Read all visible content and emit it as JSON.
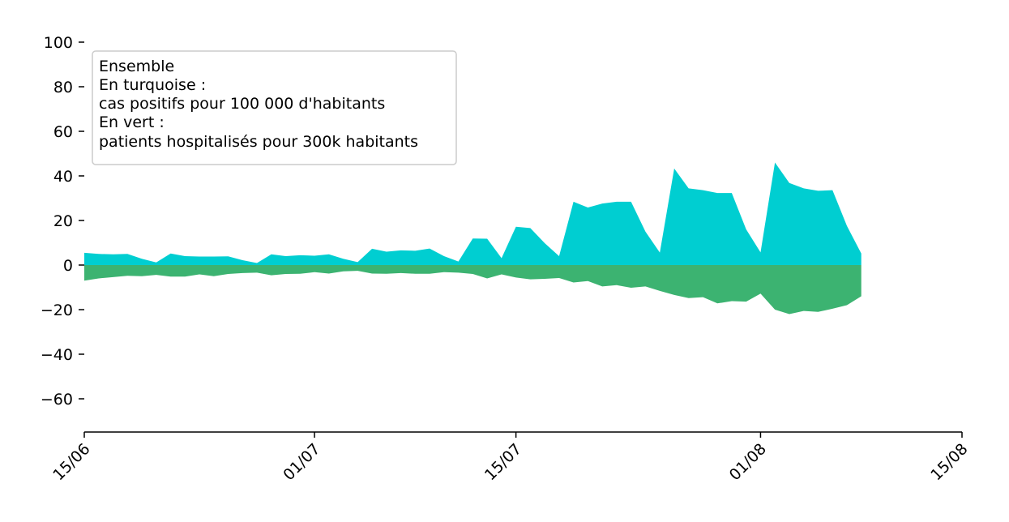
{
  "chart_data": {
    "type": "area",
    "title": "",
    "xlabel": "",
    "ylabel": "",
    "x_tick_labels": [
      "15/06",
      "01/07",
      "15/07",
      "01/08",
      "15/08"
    ],
    "x_tick_dates": [
      "2020-06-15",
      "2020-07-01",
      "2020-07-15",
      "2020-08-01",
      "2020-08-15"
    ],
    "xlim": [
      "2020-06-15",
      "2020-08-15"
    ],
    "ylim": [
      -75,
      100
    ],
    "y_ticks": [
      100,
      80,
      60,
      40,
      20,
      0,
      -20,
      -40,
      -60
    ],
    "grid": false,
    "legend": {
      "position": "top-left",
      "lines": [
        "Ensemble",
        "En turquoise :",
        "cas positifs pour 100 000 d'habitants",
        "En vert :",
        "patients hospitalisés pour 300k habitants"
      ]
    },
    "x": [
      "2020-06-15",
      "2020-06-16",
      "2020-06-17",
      "2020-06-18",
      "2020-06-19",
      "2020-06-20",
      "2020-06-21",
      "2020-06-22",
      "2020-06-23",
      "2020-06-24",
      "2020-06-25",
      "2020-06-26",
      "2020-06-27",
      "2020-06-28",
      "2020-06-29",
      "2020-06-30",
      "2020-07-01",
      "2020-07-02",
      "2020-07-03",
      "2020-07-04",
      "2020-07-05",
      "2020-07-06",
      "2020-07-07",
      "2020-07-08",
      "2020-07-09",
      "2020-07-10",
      "2020-07-11",
      "2020-07-12",
      "2020-07-13",
      "2020-07-14",
      "2020-07-15",
      "2020-07-16",
      "2020-07-17",
      "2020-07-18",
      "2020-07-19",
      "2020-07-20",
      "2020-07-21",
      "2020-07-22",
      "2020-07-23",
      "2020-07-24",
      "2020-07-25",
      "2020-07-26",
      "2020-07-27",
      "2020-07-28",
      "2020-07-29",
      "2020-07-30",
      "2020-07-31",
      "2020-08-01",
      "2020-08-02",
      "2020-08-03",
      "2020-08-04",
      "2020-08-05",
      "2020-08-06",
      "2020-08-07",
      "2020-08-08"
    ],
    "series": [
      {
        "color": "#00ced1",
        "values": [
          5.5,
          5,
          4.8,
          5,
          2.8,
          1.2,
          5.2,
          4,
          3.8,
          3.8,
          3.9,
          2.2,
          0.9,
          4.8,
          4,
          4.4,
          4.2,
          4.8,
          2.8,
          1.3,
          7.3,
          6,
          6.6,
          6.4,
          7.4,
          4,
          1.6,
          11.9,
          11.8,
          3.1,
          17.2,
          16.6,
          9.8,
          4,
          28.4,
          25.8,
          27.6,
          28.4,
          28.4,
          15,
          5.6,
          43.3,
          34.4,
          33.6,
          32.3,
          32.3,
          16,
          5.7,
          46,
          36.8,
          34.4,
          33.3,
          33.6,
          17.6,
          5.2
        ]
      },
      {
        "color": "#3cb371",
        "values": [
          -7,
          -6,
          -5.4,
          -4.8,
          -5,
          -4.4,
          -5.2,
          -5.2,
          -4.2,
          -5,
          -4,
          -3.6,
          -3.4,
          -4.6,
          -4,
          -3.9,
          -3.2,
          -3.8,
          -2.8,
          -2.6,
          -3.8,
          -3.9,
          -3.6,
          -3.9,
          -3.9,
          -3.2,
          -3.4,
          -4,
          -6,
          -4.2,
          -5.6,
          -6.4,
          -6.2,
          -5.8,
          -7.8,
          -7.2,
          -9.6,
          -9,
          -10.2,
          -9.6,
          -11.6,
          -13.4,
          -14.8,
          -14.4,
          -17.2,
          -16.2,
          -16.4,
          -12.8,
          -20,
          -22,
          -20.6,
          -21,
          -19.6,
          -18,
          -14
        ]
      }
    ]
  }
}
